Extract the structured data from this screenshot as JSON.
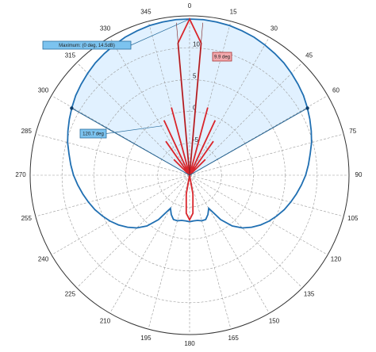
{
  "chart_data": {
    "type": "polar",
    "theta": [
      0,
      5,
      10,
      15,
      20,
      25,
      30,
      35,
      40,
      45,
      50,
      55,
      60,
      65,
      70,
      75,
      80,
      85,
      90,
      95,
      100,
      105,
      110,
      115,
      120,
      125,
      130,
      135,
      140,
      145,
      150,
      155,
      160,
      165,
      170,
      175,
      180,
      185,
      190,
      195,
      200,
      205,
      210,
      215,
      220,
      225,
      230,
      235,
      240,
      245,
      250,
      255,
      260,
      265,
      270,
      275,
      280,
      285,
      290,
      295,
      300,
      305,
      310,
      315,
      320,
      325,
      330,
      335,
      340,
      345,
      350,
      355
    ],
    "series": [
      {
        "color": "#1f6fb2",
        "values": [
          14.5,
          14.5,
          14.4,
          14.3,
          14.1,
          13.9,
          13.6,
          13.3,
          13.0,
          12.6,
          12.2,
          11.8,
          11.3,
          10.8,
          10.3,
          9.8,
          9.2,
          8.7,
          8.2,
          7.6,
          7.0,
          6.4,
          5.8,
          5.1,
          4.4,
          3.6,
          2.7,
          1.7,
          0.4,
          -1.5,
          -4.0,
          -3.2,
          -2.6,
          -2.6,
          -2.8,
          -2.8,
          -2.7,
          -2.8,
          -2.8,
          -2.6,
          -2.6,
          -3.2,
          -4.0,
          -1.5,
          0.4,
          1.7,
          2.7,
          3.6,
          4.4,
          5.1,
          5.8,
          6.4,
          7.0,
          7.6,
          8.2,
          8.7,
          9.2,
          9.8,
          10.3,
          10.8,
          11.3,
          11.8,
          12.2,
          12.6,
          13.0,
          13.3,
          13.6,
          13.9,
          14.1,
          14.3,
          14.4,
          14.5
        ]
      },
      {
        "color": "#d9252b",
        "values": [
          14.5,
          10.8,
          -10,
          1.0,
          -10,
          -0.5,
          -10,
          -3.5,
          -10,
          -6.5,
          -10,
          -10,
          -10,
          -10,
          -10,
          -10,
          -10,
          -10,
          -10,
          -10,
          -10,
          -10,
          -10,
          -10,
          -10,
          -10,
          -10,
          -10,
          -10,
          -10,
          -10,
          -10,
          -10,
          -10,
          -7,
          -4,
          -3,
          -4,
          -7,
          -10,
          -10,
          -10,
          -10,
          -10,
          -10,
          -10,
          -10,
          -10,
          -10,
          -10,
          -10,
          -10,
          -10,
          -10,
          -10,
          -10,
          -10,
          -10,
          -10,
          -10,
          -10,
          -10,
          -10,
          -6.5,
          -10,
          -3.5,
          -10,
          -0.5,
          -10,
          1.0,
          -10,
          10.8
        ]
      }
    ],
    "rlim": [
      -10,
      15
    ],
    "rticks": [
      -5,
      0,
      5,
      10
    ],
    "thetaticks": [
      0,
      15,
      30,
      45,
      60,
      75,
      90,
      105,
      120,
      135,
      150,
      165,
      180,
      195,
      210,
      225,
      240,
      255,
      270,
      285,
      300,
      315,
      330,
      345
    ],
    "annotations": {
      "maximum": {
        "text": "Maximum: (0 deg, 14.5dB)"
      },
      "beamwidth": {
        "text": "120.7 deg",
        "value": 120.7
      },
      "main_beamwidth": {
        "text": "9.9 deg",
        "value": 9.9
      }
    }
  }
}
